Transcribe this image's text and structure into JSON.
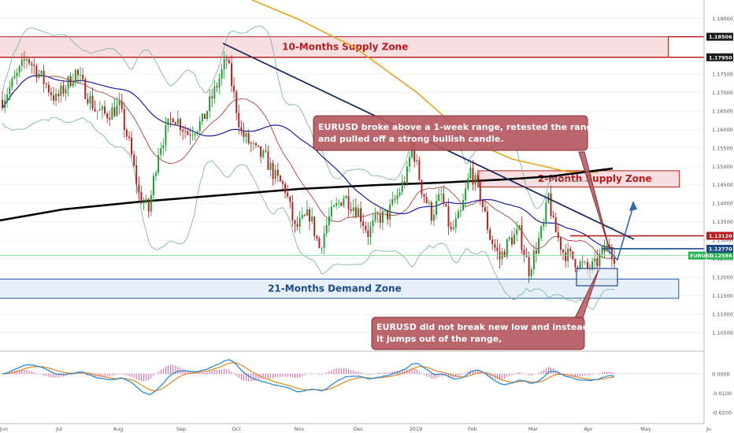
{
  "chart_data": {
    "type": "candlestick",
    "symbol": "EURUSD",
    "colors": {
      "up": "#1a9c2c",
      "down": "#b81c1c",
      "ma_black": "#000000",
      "ma_orange": "#e6a614",
      "ma_blue": "#1c1ca8",
      "ma_red": "#b24040",
      "bollinger": "#7fb6a8",
      "trendline": "#1c2c5c",
      "supply_fill": "#f6d9dc",
      "supply_border": "#b81c1c",
      "demand_fill": "#e4eef8",
      "demand_border": "#1c5c9c",
      "annotation_fill": "#b5585f",
      "arrow": "#2c6ca8",
      "macd": "#1c84d8",
      "signal": "#e6861c",
      "hist": "#e060a8"
    },
    "price_axis": {
      "min": 1.1,
      "max": 1.195,
      "ticks": [
        "1.19000",
        "1.17500",
        "1.17000",
        "1.16500",
        "1.16000",
        "1.15500",
        "1.15000",
        "1.14500",
        "1.14000",
        "1.13500",
        "1.13000",
        "1.12500",
        "1.12000",
        "1.11500",
        "1.11000",
        "1.10500"
      ],
      "tick_values": [
        1.19,
        1.175,
        1.17,
        1.165,
        1.16,
        1.155,
        1.15,
        1.145,
        1.14,
        1.135,
        1.13,
        1.125,
        1.12,
        1.115,
        1.11,
        1.105
      ]
    },
    "price_badges": [
      {
        "label": "1.18506",
        "value": 1.18506,
        "style": "dark"
      },
      {
        "label": "1.17950",
        "value": 1.1795,
        "style": "dark"
      },
      {
        "label": "1.13120",
        "value": 1.1312,
        "style": "red"
      },
      {
        "label": "1.12586",
        "value": 1.12586,
        "style": "green"
      },
      {
        "label": "1.12770",
        "value": 1.1277,
        "style": "blue"
      }
    ],
    "symbol_tag": "EURUSD",
    "time_axis": [
      "Jun",
      "Jul",
      "Aug",
      "Sep",
      "Oct",
      "Nov",
      "Dec",
      "2019",
      "Feb",
      "Mar",
      "Apr",
      "May",
      "Ju"
    ],
    "macd_axis": {
      "min": -0.025,
      "max": 0.011,
      "ticks": [
        "0.0000",
        "-0.0100",
        "-0.0200"
      ],
      "tick_values": [
        0,
        -0.01,
        -0.02
      ]
    },
    "zones": [
      {
        "label": "10-Months Supply Zone",
        "type": "supply",
        "top": 1.18506,
        "bottom": 1.1795,
        "x_start": 0,
        "x_end": 0.949
      },
      {
        "label": "2-Month Supply Zone",
        "type": "supply",
        "top": 1.1488,
        "bottom": 1.1444,
        "x_start": 0.68,
        "x_end": 0.965
      },
      {
        "label": "21-Months Demand Zone",
        "type": "demand",
        "top": 1.1195,
        "bottom": 1.1143,
        "x_start": 0,
        "x_end": 0.964
      }
    ],
    "annotations": [
      {
        "lines": [
          "EURUSD broke above a 1-week range, retested the range,",
          "and pulled off a strong bullish candle."
        ]
      },
      {
        "lines": [
          "EURUSD did not break new low and instead,",
          "it jumps out of the range,"
        ]
      }
    ],
    "series_summary": {
      "start_price": 1.168,
      "jun_high": 1.1795,
      "aug_low": 1.1301,
      "sep_high": 1.1815,
      "nov_low": 1.1215,
      "jan_high": 1.157,
      "mar_low": 1.1176,
      "mar_high": 1.1448,
      "apr_range_low": 1.1185,
      "apr_range_high": 1.1255,
      "last_price": 1.12586
    }
  }
}
